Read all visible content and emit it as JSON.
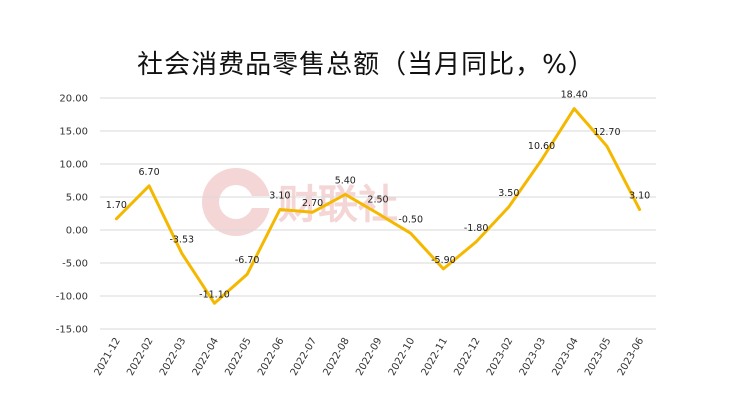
{
  "chart_data": {
    "type": "line",
    "title": "社会消费品零售总额（当月同比，%）",
    "watermark": "财联社",
    "xlabel": "",
    "ylabel": "",
    "ylim": [
      -15,
      20
    ],
    "yticks": [
      "20.00",
      "15.00",
      "10.00",
      "5.00",
      "0.00",
      "-5.00",
      "-10.00",
      "-15.00"
    ],
    "ytick_values": [
      20,
      15,
      10,
      5,
      0,
      -5,
      -10,
      -15
    ],
    "grid": true,
    "line_color": "#F5B800",
    "categories": [
      "2021-12",
      "2022-02",
      "2022-03",
      "2022-04",
      "2022-05",
      "2022-06",
      "2022-07",
      "2022-08",
      "2022-09",
      "2022-10",
      "2022-11",
      "2022-12",
      "2023-02",
      "2023-03",
      "2023-04",
      "2023-05",
      "2023-06"
    ],
    "series": [
      {
        "values": [
          1.7,
          6.7,
          -3.53,
          -11.1,
          -6.7,
          3.1,
          2.7,
          5.4,
          2.5,
          -0.5,
          -5.9,
          -1.8,
          3.5,
          10.6,
          18.4,
          12.7,
          3.1
        ],
        "labels": [
          "1.70",
          "6.70",
          "-3.53",
          "-11.10",
          "-6.70",
          "3.10",
          "2.70",
          "5.40",
          "2.50",
          "-0.50",
          "-5.90",
          "-1.80",
          "3.50",
          "10.60",
          "18.40",
          "12.70",
          "3.10"
        ]
      }
    ]
  }
}
